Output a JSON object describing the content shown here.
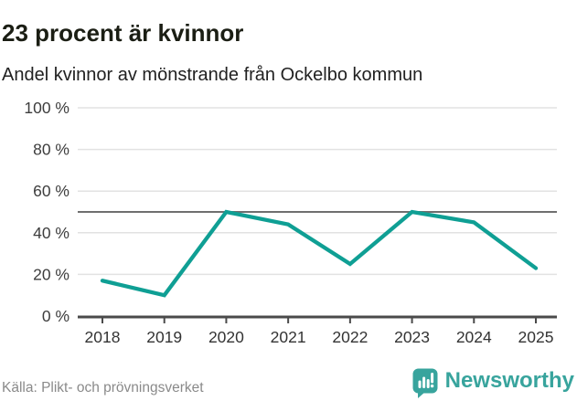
{
  "header": {
    "title": "23 procent är kvinnor",
    "subtitle": "Andel kvinnor av mönstrande från Ockelbo kommun"
  },
  "footer": {
    "source": "Källa: Plikt- och prövningsverket",
    "brand_name": "Newsworthy"
  },
  "colors": {
    "line": "#0f9f94",
    "brand": "#38a49d",
    "grid": "#e2e2e2",
    "reference_line": "#6f6f6f",
    "axis": "#4a4a4a",
    "y_tick_label": "#3d3d3d",
    "x_tick_label": "#333333",
    "title": "#1b1e14",
    "source_text": "#8a8a8a"
  },
  "chart_data": {
    "type": "line",
    "title": "23 procent är kvinnor",
    "subtitle": "Andel kvinnor av mönstrande från Ockelbo kommun",
    "categories": [
      "2018",
      "2019",
      "2020",
      "2021",
      "2022",
      "2023",
      "2024",
      "2025"
    ],
    "series": [
      {
        "name": "Andel kvinnor av mönstrande",
        "values": [
          17,
          10,
          50,
          44,
          25,
          50,
          45,
          23
        ]
      }
    ],
    "ylim": [
      0,
      100
    ],
    "yticks": [
      0,
      20,
      40,
      60,
      80,
      100
    ],
    "ytick_suffix": " %",
    "reference_line": 50,
    "grid": true,
    "legend": "none",
    "source": "Källa: Plikt- och prövningsverket"
  }
}
